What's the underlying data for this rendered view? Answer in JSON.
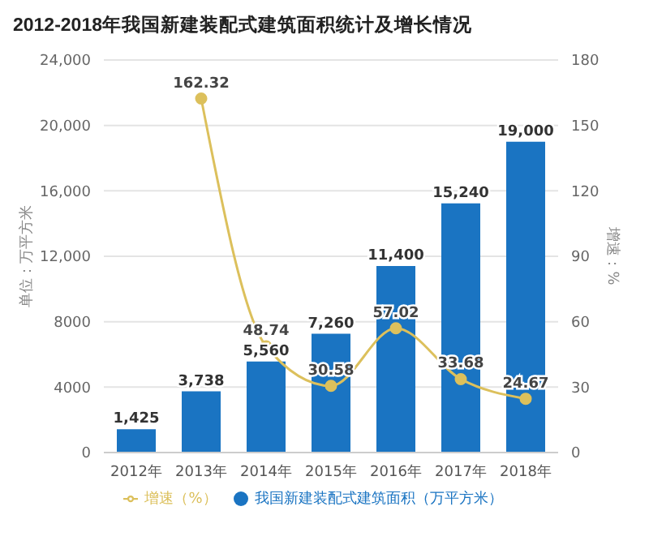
{
  "chart_data": {
    "type": "bar",
    "title": "2012-2018年我国新建装配式建筑面积统计及增长情况",
    "ylabel": "单位：万平方米",
    "y2label": "增速：%",
    "categories": [
      "2012年",
      "2013年",
      "2014年",
      "2015年",
      "2016年",
      "2017年",
      "2018年"
    ],
    "series": [
      {
        "name": "我国新建装配式建筑面积（万平方米）",
        "color": "#1a74c2",
        "values": [
          1425,
          3738,
          5560,
          7260,
          11400,
          15240,
          19000
        ],
        "value_labels": [
          "1,425",
          "3,738",
          "5,560",
          "7,260",
          "11,400",
          "15,240",
          "19,000"
        ]
      },
      {
        "name": "增速（%）",
        "type": "line",
        "axis": "y2",
        "color": "#dcc05c",
        "values": [
          null,
          162.32,
          48.74,
          30.58,
          57.02,
          33.68,
          24.67
        ],
        "value_labels": [
          null,
          "162.32",
          "48.74",
          "30.58",
          "57.02",
          "33.68",
          "24.67"
        ]
      }
    ],
    "ylim": [
      0,
      24000
    ],
    "yticks": [
      0,
      4000,
      8000,
      {
        "value": 12000,
        "label": "12,000"
      },
      {
        "value": 16000,
        "label": "16,000"
      },
      {
        "value": 20000,
        "label": "20,000"
      },
      {
        "value": 24000,
        "label": "24,000"
      }
    ],
    "y2lim": [
      0,
      180
    ],
    "y2ticks": [
      0,
      30,
      60,
      90,
      120,
      150,
      180
    ],
    "grid": "y",
    "legend": "bottom",
    "marker": "circle",
    "line_style": "solid"
  }
}
